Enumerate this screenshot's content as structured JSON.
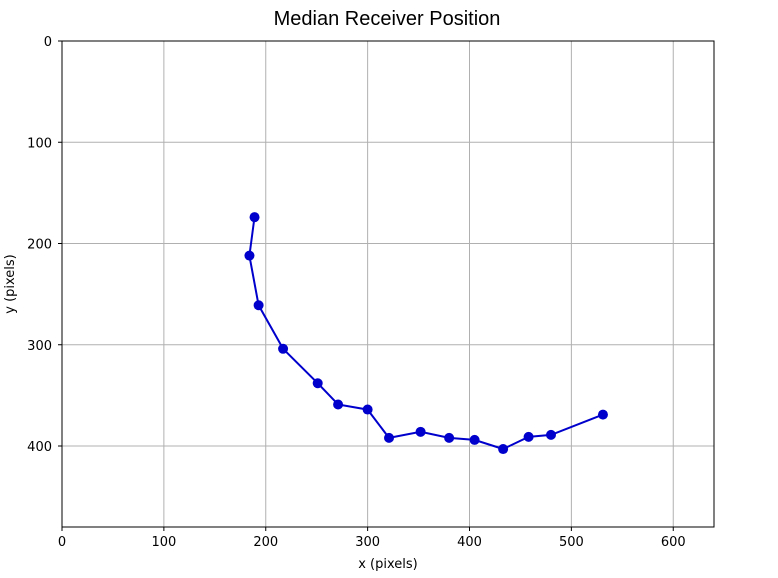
{
  "chart_data": {
    "type": "line",
    "title": "Median Receiver Position",
    "xlabel": "x (pixels)",
    "ylabel": "y (pixels)",
    "xlim": [
      0,
      640
    ],
    "ylim": [
      480,
      0
    ],
    "y_inverted": true,
    "grid": true,
    "x_ticks": [
      0,
      100,
      200,
      300,
      400,
      500,
      600
    ],
    "y_ticks": [
      0,
      100,
      200,
      300,
      400
    ],
    "color": "#0000cc",
    "series": [
      {
        "marker": "circle",
        "points": [
          {
            "x": 189,
            "y": 174
          },
          {
            "x": 184,
            "y": 212
          },
          {
            "x": 193,
            "y": 261
          },
          {
            "x": 217,
            "y": 304
          },
          {
            "x": 251,
            "y": 338
          },
          {
            "x": 271,
            "y": 359
          },
          {
            "x": 300,
            "y": 364
          },
          {
            "x": 321,
            "y": 392
          },
          {
            "x": 352,
            "y": 386
          },
          {
            "x": 380,
            "y": 392
          },
          {
            "x": 405,
            "y": 394
          },
          {
            "x": 433,
            "y": 403
          },
          {
            "x": 458,
            "y": 391
          },
          {
            "x": 480,
            "y": 389
          },
          {
            "x": 531,
            "y": 369
          }
        ]
      }
    ]
  }
}
